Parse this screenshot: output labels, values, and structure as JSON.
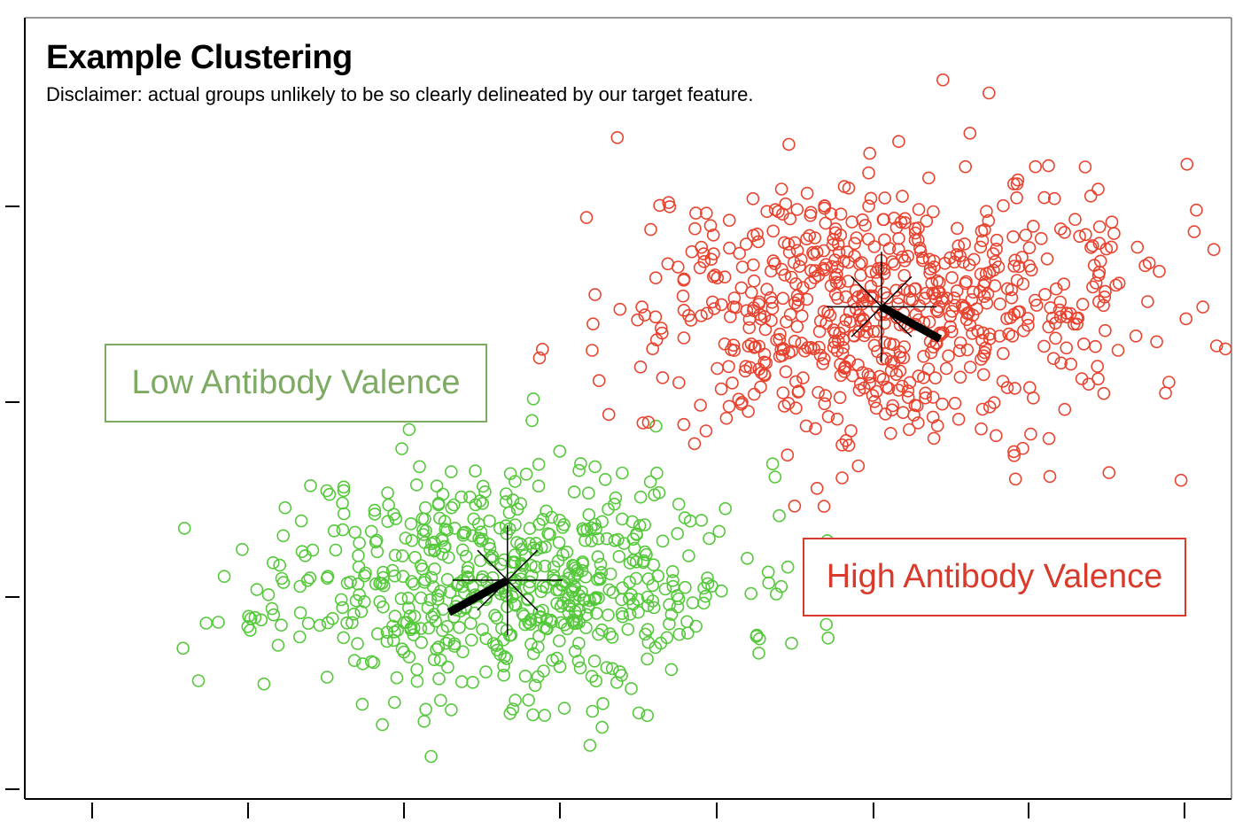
{
  "title": "Example Clustering",
  "subtitle": "Disclaimer: actual groups unlikely to be so clearly delineated by our target feature.",
  "colors": {
    "low": "#55c83b",
    "high": "#e8432f",
    "low_label": "#7dab63",
    "high_label": "#d83a2c"
  },
  "chart_data": {
    "type": "scatter",
    "title": "Example Clustering",
    "subtitle": "Disclaimer: actual groups unlikely to be so clearly delineated by our target feature.",
    "xlabel": "",
    "ylabel": "",
    "x_ticks": 8,
    "y_ticks": 4,
    "tick_labels_shown": false,
    "grid": false,
    "series": [
      {
        "name": "Low Antibody Valence",
        "marker": "hollow-circle",
        "color": "#55c83b",
        "n": 620,
        "center": [
          0.4,
          0.28
        ],
        "spread": [
          0.095,
          0.075
        ],
        "seed": 11
      },
      {
        "name": "High Antibody Valence",
        "marker": "hollow-circle",
        "color": "#e8432f",
        "n": 700,
        "center": [
          0.71,
          0.63
        ],
        "spread": [
          0.105,
          0.085
        ],
        "seed": 29
      }
    ],
    "annotations": [
      {
        "text": "Low Antibody Valence",
        "color": "#7dab63"
      },
      {
        "text": "High Antibody Valence",
        "color": "#d83a2c"
      }
    ]
  }
}
